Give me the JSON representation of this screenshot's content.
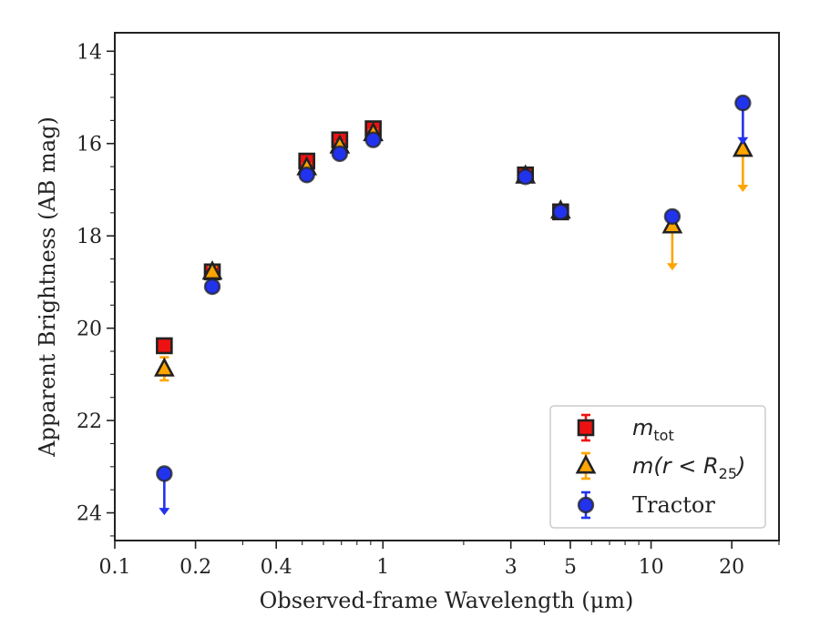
{
  "chart_data": {
    "type": "scatter",
    "xlabel": "Observed-frame Wavelength (μm)",
    "ylabel": "Apparent Brightness (AB mag)",
    "xscale": "log",
    "xlim": [
      0.1,
      30
    ],
    "ylim": [
      24.6,
      13.6
    ],
    "y_inverted": true,
    "x_ticks": [
      {
        "value": 0.1,
        "label": "0.1"
      },
      {
        "value": 0.2,
        "label": "0.2"
      },
      {
        "value": 0.4,
        "label": "0.4"
      },
      {
        "value": 1,
        "label": "1"
      },
      {
        "value": 3,
        "label": "3"
      },
      {
        "value": 5,
        "label": "5"
      },
      {
        "value": 10,
        "label": "10"
      },
      {
        "value": 20,
        "label": "20"
      }
    ],
    "y_ticks": [
      {
        "value": 14,
        "label": "14"
      },
      {
        "value": 16,
        "label": "16"
      },
      {
        "value": 18,
        "label": "18"
      },
      {
        "value": 20,
        "label": "20"
      },
      {
        "value": 22,
        "label": "22"
      },
      {
        "value": 24,
        "label": "24"
      }
    ],
    "legend_position": "lower-right",
    "series": [
      {
        "name": "m_tot",
        "legend_math": "m",
        "legend_sub": "tot",
        "marker": "square",
        "color": "#ee1111",
        "points": [
          {
            "x": 0.153,
            "y": 20.38,
            "err": 0.08
          },
          {
            "x": 0.231,
            "y": 18.78,
            "err": 0.05
          },
          {
            "x": 0.52,
            "y": 16.38,
            "err": 0.05
          },
          {
            "x": 0.69,
            "y": 15.92,
            "err": 0.05
          },
          {
            "x": 0.92,
            "y": 15.68,
            "err": 0.05
          },
          {
            "x": 3.4,
            "y": 16.68,
            "err": 0.05
          },
          {
            "x": 4.6,
            "y": 17.48,
            "err": 0.05
          }
        ]
      },
      {
        "name": "m(r < R25)",
        "legend_math": "m(r < R",
        "legend_sub": "25",
        "legend_tail": ")",
        "marker": "triangle",
        "color": "#ffa500",
        "points": [
          {
            "x": 0.153,
            "y": 20.88,
            "err": 0.25
          },
          {
            "x": 0.231,
            "y": 18.78,
            "err": 0.1
          },
          {
            "x": 0.52,
            "y": 16.52,
            "err": 0.08
          },
          {
            "x": 0.69,
            "y": 16.05,
            "err": 0.08
          },
          {
            "x": 0.92,
            "y": 15.78,
            "err": 0.08
          },
          {
            "x": 3.4,
            "y": 16.7,
            "err": 0.06
          },
          {
            "x": 4.6,
            "y": 17.46,
            "err": 0.06
          },
          {
            "x": 12.0,
            "y": 17.78,
            "upper_limit": true,
            "arrow_to": 18.75
          },
          {
            "x": 22.0,
            "y": 16.12,
            "upper_limit": true,
            "arrow_to": 17.05
          }
        ]
      },
      {
        "name": "Tractor",
        "marker": "circle",
        "color": "#2233ee",
        "points": [
          {
            "x": 0.153,
            "y": 23.15,
            "upper_limit": true,
            "arrow_to": 24.05
          },
          {
            "x": 0.231,
            "y": 19.1,
            "err": 0.06
          },
          {
            "x": 0.52,
            "y": 16.68,
            "err": 0.05
          },
          {
            "x": 0.69,
            "y": 16.22,
            "err": 0.05
          },
          {
            "x": 0.92,
            "y": 15.92,
            "err": 0.05
          },
          {
            "x": 3.4,
            "y": 16.72,
            "err": 0.05
          },
          {
            "x": 4.6,
            "y": 17.48,
            "err": 0.05
          },
          {
            "x": 12.0,
            "y": 17.58,
            "err": 0.05
          },
          {
            "x": 22.0,
            "y": 15.12,
            "upper_limit": true,
            "arrow_to": 16.02
          }
        ]
      }
    ]
  }
}
